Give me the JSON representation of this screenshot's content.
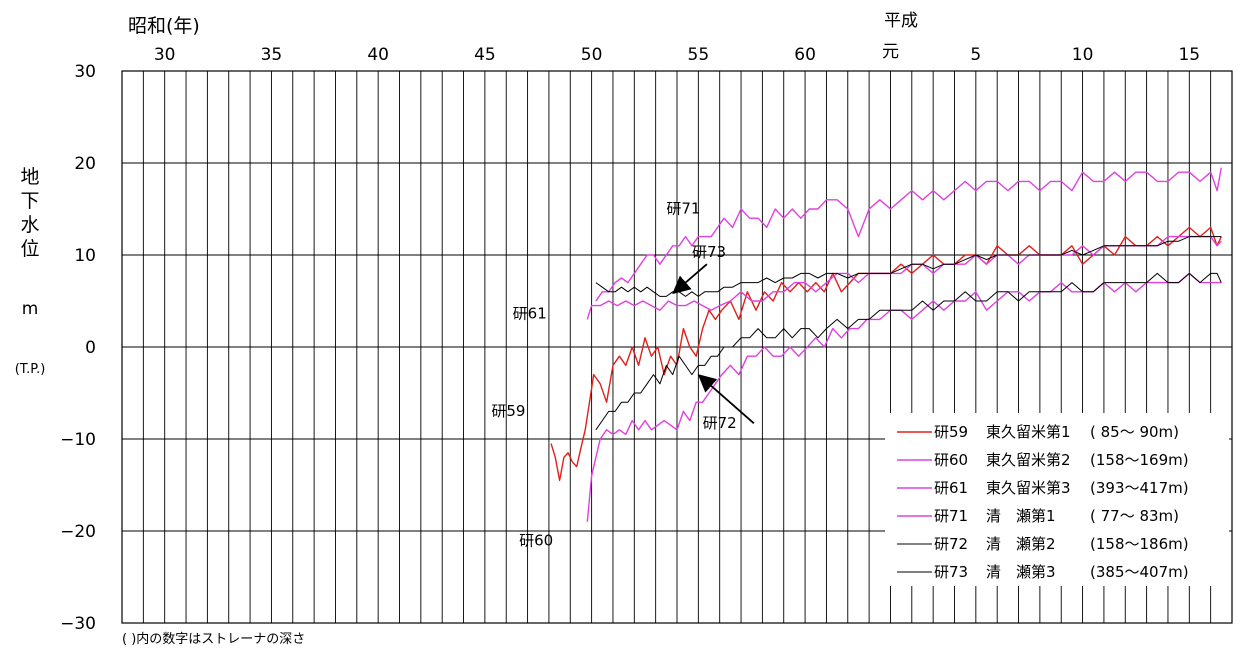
{
  "chart_data": {
    "type": "line",
    "era_label": "昭和(年)",
    "heisei_label": "平成",
    "ylabel_chars": [
      "地",
      "下",
      "水",
      "位"
    ],
    "yunit": "m",
    "yref": "(T.P.)",
    "footnote": "( )内の数字はストレーナの深さ",
    "ylim": [
      -30,
      30
    ],
    "xlim": [
      1953,
      2005
    ],
    "yticks": [
      30,
      20,
      10,
      0,
      -10,
      -20,
      -30
    ],
    "ytick_labels": [
      "30",
      "20",
      "10",
      "0",
      "−10",
      "−20",
      "−30"
    ],
    "xticks": [
      {
        "x": 1955,
        "label": "30"
      },
      {
        "x": 1960,
        "label": "35"
      },
      {
        "x": 1965,
        "label": "40"
      },
      {
        "x": 1970,
        "label": "45"
      },
      {
        "x": 1975,
        "label": "50"
      },
      {
        "x": 1980,
        "label": "55"
      },
      {
        "x": 1985,
        "label": "60"
      },
      {
        "x": 1989,
        "label": "元"
      },
      {
        "x": 1993,
        "label": "5"
      },
      {
        "x": 1998,
        "label": "10"
      },
      {
        "x": 2003,
        "label": "15"
      }
    ],
    "legend_position": "bottom-right",
    "colors": {
      "red": "#e0201c",
      "magenta": "#e040e0",
      "black": "#000000"
    },
    "series": [
      {
        "name": "研59",
        "well": "東久留米第1",
        "depth": "( 85〜  90m)",
        "color": "#e0201c",
        "x": [
          1973.1,
          1973.3,
          1973.5,
          1973.7,
          1973.9,
          1974.1,
          1974.3,
          1974.5,
          1974.7,
          1974.9,
          1975.1,
          1975.4,
          1975.7,
          1976.0,
          1976.3,
          1976.6,
          1976.9,
          1977.2,
          1977.5,
          1977.8,
          1978.1,
          1978.4,
          1978.7,
          1979.0,
          1979.3,
          1979.6,
          1979.9,
          1980.2,
          1980.5,
          1980.8,
          1981.1,
          1981.5,
          1981.9,
          1982.3,
          1982.7,
          1983.1,
          1983.5,
          1983.9,
          1984.3,
          1984.7,
          1985.1,
          1985.5,
          1985.9,
          1986.3,
          1986.7,
          1987.1,
          1987.5,
          1987.9,
          1988.5,
          1989.0,
          1989.5,
          1990.0,
          1990.5,
          1991.0,
          1991.5,
          1992.0,
          1992.5,
          1993.0,
          1993.5,
          1994.0,
          1994.5,
          1995.0,
          1995.5,
          1996.0,
          1996.5,
          1997.0,
          1997.5,
          1998.0,
          1998.5,
          1999.0,
          1999.5,
          2000.0,
          2000.5,
          2001.0,
          2001.5,
          2002.0,
          2002.5,
          2003.0,
          2003.5,
          2004.0,
          2004.3,
          2004.5
        ],
        "y": [
          -10.5,
          -12,
          -14.5,
          -12,
          -11.5,
          -12.5,
          -13,
          -11,
          -9,
          -6,
          -3,
          -4,
          -6,
          -2,
          -1,
          -2,
          0,
          -2,
          1,
          -1,
          0,
          -3,
          -1,
          -2,
          2,
          0,
          -1,
          2,
          4,
          3,
          4,
          5,
          3,
          6,
          4,
          6,
          5,
          7,
          6,
          7,
          6,
          7,
          6,
          8,
          6,
          7,
          8,
          8,
          8,
          8,
          9,
          8,
          9,
          10,
          9,
          9,
          10,
          10,
          9,
          11,
          10,
          10,
          11,
          10,
          10,
          10,
          11,
          9,
          10,
          11,
          10,
          12,
          11,
          11,
          12,
          11,
          12,
          13,
          12,
          13,
          11,
          12
        ]
      },
      {
        "name": "研60",
        "well": "東久留米第2",
        "depth": "(158〜169m)",
        "color": "#e040e0",
        "x": [
          1974.8,
          1975.0,
          1975.2,
          1975.4,
          1975.7,
          1976.0,
          1976.3,
          1976.6,
          1976.9,
          1977.2,
          1977.5,
          1977.8,
          1978.1,
          1978.4,
          1978.7,
          1979.0,
          1979.3,
          1979.6,
          1979.9,
          1980.2,
          1980.5,
          1980.8,
          1981.1,
          1981.5,
          1981.9,
          1982.3,
          1982.7,
          1983.1,
          1983.5,
          1983.9,
          1984.3,
          1984.7,
          1985.1,
          1985.5,
          1985.9,
          1986.3,
          1986.7,
          1987.1,
          1987.5,
          1987.9,
          1988.5,
          1989.0,
          1989.5,
          1990.0,
          1990.5,
          1991.0,
          1991.5,
          1992.0,
          1992.5,
          1993.0,
          1993.5,
          1994.0,
          1994.5,
          1995.0,
          1995.5,
          1996.0,
          1996.5,
          1997.0,
          1997.5,
          1998.0,
          1998.5,
          1999.0,
          1999.5,
          2000.0,
          2000.5,
          2001.0,
          2001.5,
          2002.0,
          2002.5,
          2003.0,
          2003.5,
          2004.0,
          2004.3,
          2004.5
        ],
        "y": [
          -19,
          -14,
          -12,
          -10,
          -9,
          -9.5,
          -9,
          -9.5,
          -8,
          -9,
          -8,
          -9,
          -8.5,
          -8,
          -8.5,
          -9,
          -7,
          -8,
          -6,
          -6,
          -5,
          -4,
          -3,
          -2,
          -3,
          -1,
          -1,
          0,
          -1,
          -1,
          0,
          -1,
          0,
          1,
          0,
          2,
          1,
          2,
          2,
          3,
          3,
          4,
          4,
          3,
          4,
          5,
          4,
          5,
          5,
          6,
          4,
          5,
          6,
          6,
          5,
          6,
          6,
          7,
          6,
          6,
          6,
          7,
          6,
          7,
          6,
          7,
          7,
          7,
          7,
          8,
          7,
          7,
          7,
          7
        ]
      },
      {
        "name": "研61",
        "well": "東久留米第3",
        "depth": "(393〜417m)",
        "color": "#e040e0",
        "x": [
          1974.8,
          1975.0,
          1975.4,
          1975.8,
          1976.2,
          1976.6,
          1977.0,
          1977.4,
          1977.8,
          1978.2,
          1978.6,
          1979.0,
          1979.4,
          1979.8,
          1980.2,
          1980.6,
          1981.0,
          1981.5,
          1982.0,
          1982.5,
          1983.0,
          1983.5,
          1984.0,
          1984.5,
          1985.0,
          1985.5,
          1986.0,
          1986.5,
          1987.0,
          1987.5,
          1988.0,
          1988.5,
          1989.0,
          1989.5,
          1990.0,
          1990.5,
          1991.0,
          1991.5,
          1992.0,
          1992.5,
          1993.0,
          1993.5,
          1994.0,
          1994.5,
          1995.0,
          1995.5,
          1996.0,
          1996.5,
          1997.0,
          1997.5,
          1998.0,
          1998.5,
          1999.0,
          1999.5,
          2000.0,
          2000.5,
          2001.0,
          2001.5,
          2002.0,
          2002.5,
          2003.0,
          2003.5,
          2004.0,
          2004.3,
          2004.5
        ],
        "y": [
          3,
          4.5,
          4.5,
          5,
          4.5,
          5,
          4.5,
          5,
          4.5,
          4,
          5,
          4.5,
          4.5,
          5,
          4.5,
          4,
          4.5,
          5,
          6,
          5,
          5,
          6,
          6,
          7,
          7,
          6,
          7,
          8,
          8,
          7,
          8,
          8,
          8,
          8,
          9,
          9,
          8,
          9,
          9,
          9,
          10,
          9,
          10,
          10,
          9,
          10,
          10,
          10,
          10,
          10,
          11,
          10,
          11,
          11,
          11,
          11,
          11,
          11,
          12,
          12,
          12,
          12,
          12,
          11,
          11.5
        ]
      },
      {
        "name": "研71",
        "well": "清　瀬第1",
        "depth": "( 77〜  83m)",
        "color": "#e040e0",
        "x": [
          1975.2,
          1975.5,
          1975.8,
          1976.1,
          1976.4,
          1976.7,
          1977.0,
          1977.3,
          1977.6,
          1977.9,
          1978.2,
          1978.5,
          1978.8,
          1979.1,
          1979.4,
          1979.7,
          1980.0,
          1980.3,
          1980.6,
          1980.9,
          1981.2,
          1981.6,
          1982.0,
          1982.4,
          1982.8,
          1983.2,
          1983.6,
          1984.0,
          1984.4,
          1984.8,
          1985.2,
          1985.6,
          1986.0,
          1986.5,
          1987.0,
          1987.5,
          1988.0,
          1988.5,
          1989.0,
          1989.5,
          1990.0,
          1990.5,
          1991.0,
          1991.5,
          1992.0,
          1992.5,
          1993.0,
          1993.5,
          1994.0,
          1994.5,
          1995.0,
          1995.5,
          1996.0,
          1996.5,
          1997.0,
          1997.5,
          1998.0,
          1998.5,
          1999.0,
          1999.5,
          2000.0,
          2000.5,
          2001.0,
          2001.5,
          2002.0,
          2002.5,
          2003.0,
          2003.5,
          2004.0,
          2004.3,
          2004.5
        ],
        "y": [
          5,
          6,
          6,
          7,
          7.5,
          7,
          8,
          9,
          10,
          10,
          9,
          10,
          11,
          11,
          12,
          11,
          12,
          12,
          12,
          13,
          14,
          13,
          15,
          14,
          14,
          13,
          15,
          14,
          15,
          14,
          15,
          15,
          16,
          16,
          15,
          12,
          15,
          16,
          15,
          16,
          17,
          16,
          17,
          16,
          17,
          18,
          17,
          18,
          18,
          17,
          18,
          18,
          17,
          18,
          18,
          17,
          19,
          18,
          18,
          19,
          18,
          19,
          19,
          18,
          18,
          19,
          19,
          18,
          19,
          17,
          19.5
        ]
      },
      {
        "name": "研72",
        "well": "清　瀬第2",
        "depth": "(158〜186m)",
        "color": "#000000",
        "x": [
          1975.2,
          1975.5,
          1975.8,
          1976.1,
          1976.4,
          1976.7,
          1977.0,
          1977.3,
          1977.6,
          1977.9,
          1978.2,
          1978.5,
          1978.8,
          1979.1,
          1979.4,
          1979.7,
          1980.0,
          1980.3,
          1980.6,
          1980.9,
          1981.2,
          1981.6,
          1982.0,
          1982.4,
          1982.8,
          1983.2,
          1983.6,
          1984.0,
          1984.4,
          1984.8,
          1985.2,
          1985.6,
          1986.0,
          1986.5,
          1987.0,
          1987.5,
          1988.0,
          1988.5,
          1989.0,
          1989.5,
          1990.0,
          1990.5,
          1991.0,
          1991.5,
          1992.0,
          1992.5,
          1993.0,
          1993.5,
          1994.0,
          1994.5,
          1995.0,
          1995.5,
          1996.0,
          1996.5,
          1997.0,
          1997.5,
          1998.0,
          1998.5,
          1999.0,
          1999.5,
          2000.0,
          2000.5,
          2001.0,
          2001.5,
          2002.0,
          2002.5,
          2003.0,
          2003.5,
          2004.0,
          2004.3,
          2004.5
        ],
        "y": [
          -9,
          -8,
          -7,
          -7,
          -6,
          -6,
          -5,
          -5,
          -4,
          -3,
          -4,
          -2,
          -3,
          -1,
          -2,
          -3,
          -2,
          -2,
          -1,
          -1,
          0,
          0,
          1,
          1,
          2,
          1,
          1,
          2,
          1,
          2,
          2,
          1,
          2,
          3,
          2,
          3,
          3,
          4,
          4,
          4,
          4,
          5,
          4,
          5,
          5,
          6,
          5,
          5,
          6,
          6,
          5,
          6,
          6,
          6,
          6,
          7,
          6,
          6,
          7,
          7,
          7,
          7,
          7,
          8,
          7,
          7,
          8,
          7,
          8,
          8,
          7
        ]
      },
      {
        "name": "研73",
        "well": "清　瀬第3",
        "depth": "(385〜407m)",
        "color": "#000000",
        "x": [
          1975.2,
          1975.5,
          1975.8,
          1976.1,
          1976.4,
          1976.7,
          1977.0,
          1977.3,
          1977.6,
          1977.9,
          1978.2,
          1978.5,
          1978.8,
          1979.1,
          1979.4,
          1979.7,
          1980.0,
          1980.3,
          1980.6,
          1980.9,
          1981.2,
          1981.6,
          1982.0,
          1982.4,
          1982.8,
          1983.2,
          1983.6,
          1984.0,
          1984.4,
          1984.8,
          1985.2,
          1985.6,
          1986.0,
          1986.5,
          1987.0,
          1987.5,
          1988.0,
          1988.5,
          1989.0,
          1989.5,
          1990.0,
          1990.5,
          1991.0,
          1991.5,
          1992.0,
          1992.5,
          1993.0,
          1993.5,
          1994.0,
          1994.5,
          1995.0,
          1995.5,
          1996.0,
          1996.5,
          1997.0,
          1997.5,
          1998.0,
          1998.5,
          1999.0,
          1999.5,
          2000.0,
          2000.5,
          2001.0,
          2001.5,
          2002.0,
          2002.5,
          2003.0,
          2003.5,
          2004.0,
          2004.3,
          2004.5
        ],
        "y": [
          7,
          6.5,
          6,
          6,
          6.5,
          6,
          6.5,
          6,
          6.5,
          6,
          5.5,
          5.5,
          6,
          6,
          5.5,
          6,
          5.5,
          6,
          6,
          6,
          6.5,
          6.5,
          7,
          7,
          7,
          7.5,
          7,
          7.5,
          7.5,
          8,
          8,
          7.5,
          8,
          8,
          7.5,
          8,
          8,
          8,
          8,
          8.5,
          9,
          9,
          8.5,
          9,
          9,
          9.5,
          10,
          9.5,
          10,
          10,
          10,
          10,
          10,
          10,
          10,
          10.5,
          10,
          10.5,
          11,
          11,
          11,
          11,
          11,
          11,
          11.5,
          11.5,
          12,
          12,
          12,
          12,
          12
        ]
      }
    ],
    "annotations": [
      {
        "label": "研71",
        "x": 1979.3,
        "y": 14.5
      },
      {
        "label": "研73",
        "x": 1980.5,
        "y": 9.8
      },
      {
        "label": "研61",
        "x": 1972.1,
        "y": 3.1
      },
      {
        "label": "研59",
        "x": 1971.1,
        "y": -7.5
      },
      {
        "label": "研72",
        "x": 1981.0,
        "y": -8.8
      },
      {
        "label": "研60",
        "x": 1972.4,
        "y": -21.6
      }
    ]
  }
}
